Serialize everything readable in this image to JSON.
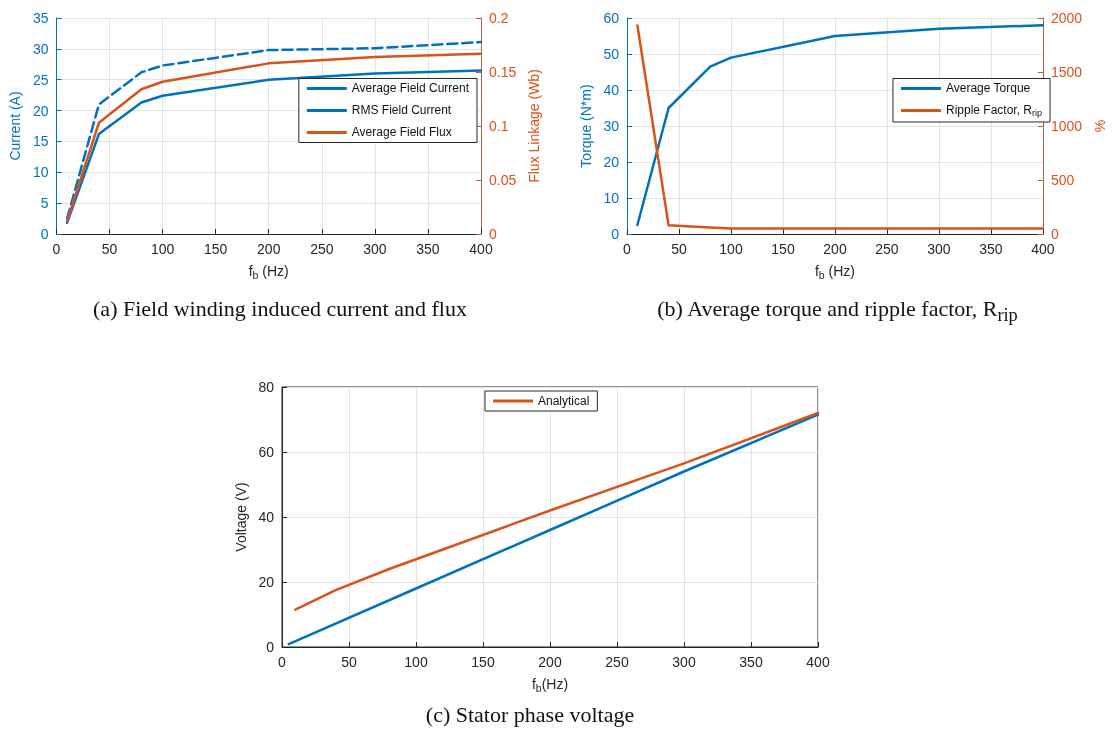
{
  "chart_data": [
    {
      "type": "line",
      "title": "(a) Field winding induced current and flux",
      "xlabel": "f$_{b}$ (Hz)",
      "ylabel": "Current (A)",
      "y2label": "Flux Linkage (Wb)",
      "x": [
        10,
        40,
        80,
        100,
        200,
        300,
        400
      ],
      "series": [
        {
          "name": "Average Field Current",
          "color": "#0072bd",
          "values": [
            1.8,
            16.2,
            21.3,
            22.4,
            25,
            26,
            26.5
          ]
        },
        {
          "name": "RMS Field Current",
          "color": "#0072bd",
          "line_style": "dashed",
          "values": [
            2.5,
            21,
            26.2,
            27.3,
            29.8,
            30.1,
            31.1
          ]
        },
        {
          "name": "Average Field Flux",
          "color": "#d95319",
          "axis": "y2",
          "values": [
            0.012,
            0.103,
            0.134,
            0.141,
            0.158,
            0.164,
            0.167
          ]
        }
      ],
      "xlim": [
        0,
        400
      ],
      "xticks": [
        0,
        50,
        100,
        150,
        200,
        250,
        300,
        350,
        400
      ],
      "ylim": [
        0,
        35
      ],
      "yticks": [
        0,
        5,
        10,
        15,
        20,
        25,
        30,
        35
      ],
      "y2lim": [
        0,
        0.2
      ],
      "y2ticks": [
        0,
        0.05,
        0.1,
        0.15,
        0.2
      ],
      "grid": true,
      "legend": "right",
      "marker": "none",
      "line_style": "solid"
    },
    {
      "type": "line",
      "title": "(b) Average torque and ripple factor, R$_{rip}$",
      "xlabel": "f$_{b}$ (Hz)",
      "ylabel": "Torque (N*m)",
      "y2label": "%",
      "x": [
        10,
        40,
        80,
        100,
        200,
        300,
        400
      ],
      "series": [
        {
          "name": "Average Torque",
          "color": "#0072bd",
          "values": [
            2.5,
            35,
            46.5,
            49,
            55,
            57,
            58
          ]
        },
        {
          "name": "Ripple Factor, R$_{rip}$",
          "color": "#d95319",
          "axis": "y2",
          "values": [
            1930,
            80,
            60,
            50,
            50,
            50,
            50
          ]
        }
      ],
      "xlim": [
        0,
        400
      ],
      "xticks": [
        0,
        50,
        100,
        150,
        200,
        250,
        300,
        350,
        400
      ],
      "ylim": [
        0,
        60
      ],
      "yticks": [
        0,
        10,
        20,
        30,
        40,
        50,
        60
      ],
      "y2lim": [
        0,
        2000
      ],
      "y2ticks": [
        0,
        500,
        1000,
        1500,
        2000
      ],
      "grid": true,
      "legend": "right",
      "marker": "none",
      "line_style": "solid"
    },
    {
      "type": "line",
      "title": "(c) Stator phase voltage",
      "xlabel": "f$_{b}$(Hz)",
      "ylabel": "Voltage (V)",
      "series": [
        {
          "color": "#0072bd",
          "x": [
            5,
            100,
            200,
            300,
            400
          ],
          "values": [
            0.9,
            18,
            36,
            54,
            71.5
          ]
        },
        {
          "name": "Analytical",
          "color": "#d95319",
          "x": [
            10,
            40,
            80,
            100,
            200,
            300,
            400
          ],
          "values": [
            11.5,
            17.5,
            24,
            27,
            42,
            56.5,
            72
          ]
        }
      ],
      "xlim": [
        0,
        400
      ],
      "xticks": [
        0,
        50,
        100,
        150,
        200,
        250,
        300,
        350,
        400
      ],
      "ylim": [
        0,
        80
      ],
      "yticks": [
        0,
        20,
        40,
        60,
        80
      ],
      "grid": true,
      "legend": "top",
      "marker": "none",
      "line_style": "solid"
    }
  ]
}
